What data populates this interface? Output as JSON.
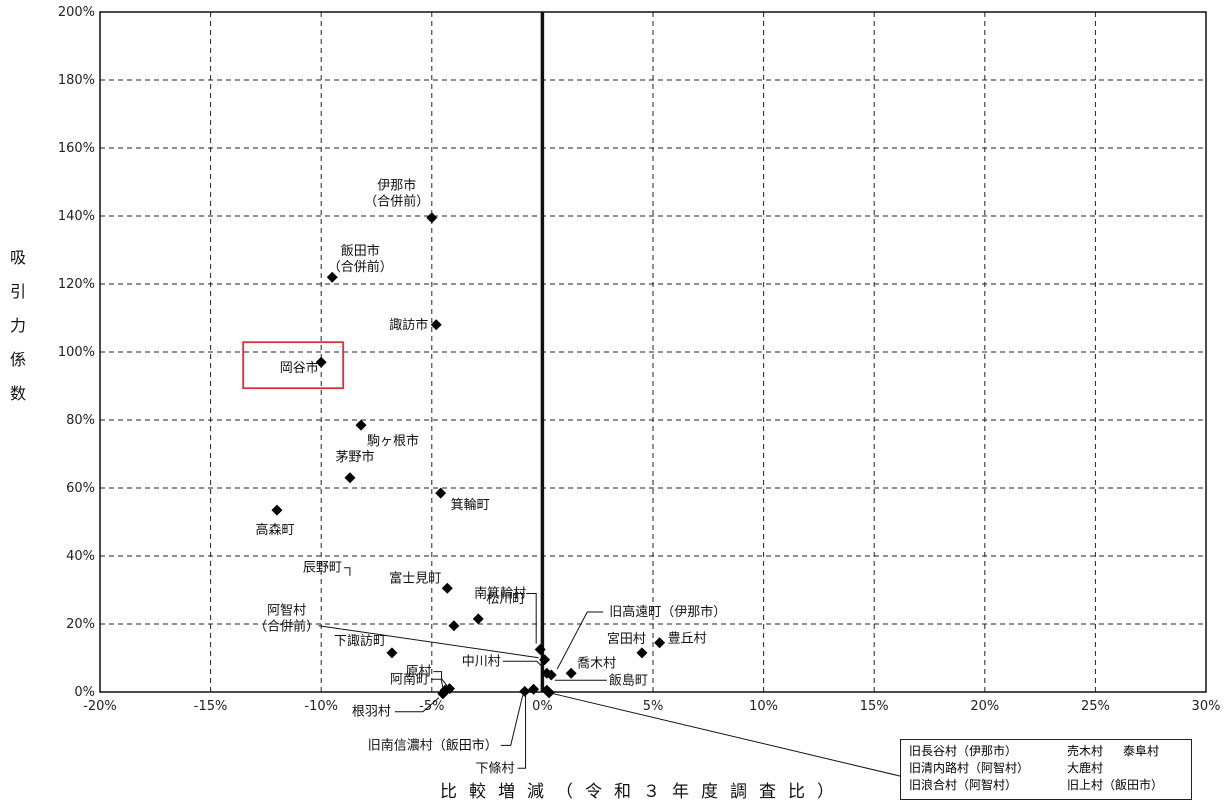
{
  "chart_data": {
    "type": "scatter",
    "title": "",
    "xlabel": "比較増減（令和３年度調査比）",
    "ylabel": "吸引力係数",
    "xlim": [
      -20,
      30
    ],
    "ylim": [
      0,
      200
    ],
    "x_ticks": [
      "-20%",
      "-15%",
      "-10%",
      "-5%",
      "0%",
      "5%",
      "10%",
      "15%",
      "20%",
      "25%",
      "30%"
    ],
    "y_ticks": [
      "0%",
      "20%",
      "40%",
      "60%",
      "80%",
      "100%",
      "120%",
      "140%",
      "160%",
      "180%",
      "200%"
    ],
    "grid": true,
    "highlight": {
      "name": "岡谷市",
      "color": "#d9303e"
    },
    "points": [
      {
        "name": "伊那市",
        "sub": "（合併前）",
        "x": -5.0,
        "y": 139.5
      },
      {
        "name": "飯田市",
        "sub": "（合併前）",
        "x": -9.5,
        "y": 122.0
      },
      {
        "name": "諏訪市",
        "sub": "",
        "x": -4.8,
        "y": 108.0
      },
      {
        "name": "岡谷市",
        "sub": "",
        "x": -10.0,
        "y": 97.0
      },
      {
        "name": "駒ヶ根市",
        "sub": "",
        "x": -8.2,
        "y": 78.5
      },
      {
        "name": "茅野市",
        "sub": "",
        "x": -8.7,
        "y": 63.0
      },
      {
        "name": "箕輪町",
        "sub": "",
        "x": -4.6,
        "y": 58.5
      },
      {
        "name": "高森町",
        "sub": "",
        "x": -12.0,
        "y": 53.5
      },
      {
        "name": "富士見町",
        "sub": "",
        "x": -4.3,
        "y": 30.5
      },
      {
        "name": "南箕輪村",
        "sub": "",
        "x": -0.1,
        "y": 12.5
      },
      {
        "name": "阿智村",
        "sub": "（合併前）",
        "x": 0.1,
        "y": 9.5
      },
      {
        "name": "辰野町",
        "sub": "",
        "x": -4.0,
        "y": 19.5
      },
      {
        "name": "松川町",
        "sub": "",
        "x": -2.9,
        "y": 21.5
      },
      {
        "name": "旧高遠町（伊那市）",
        "sub": "",
        "x": 0.4,
        "y": 5.0
      },
      {
        "name": "宮田村",
        "sub": "",
        "x": 4.5,
        "y": 11.5
      },
      {
        "name": "豊丘村",
        "sub": "",
        "x": 5.3,
        "y": 14.5
      },
      {
        "name": "下諏訪町",
        "sub": "",
        "x": -6.8,
        "y": 11.5
      },
      {
        "name": "中川村",
        "sub": "",
        "x": 0.2,
        "y": 5.5
      },
      {
        "name": "喬木村",
        "sub": "",
        "x": 1.3,
        "y": 5.5
      },
      {
        "name": "原村",
        "sub": "",
        "x": -4.2,
        "y": 1.0
      },
      {
        "name": "阿南町",
        "sub": "",
        "x": -4.4,
        "y": 0.5
      },
      {
        "name": "飯島町",
        "sub": "",
        "x": 0.2,
        "y": 0.5
      },
      {
        "name": "根羽村",
        "sub": "",
        "x": -4.5,
        "y": -0.5
      },
      {
        "name": "旧南信濃村（飯田市）",
        "sub": "",
        "x": -0.8,
        "y": 0.2
      },
      {
        "name": "下條村",
        "sub": "",
        "x": -0.4,
        "y": 0.8
      },
      {
        "name": "旧長谷村（伊那市）",
        "sub": "",
        "x": 0.3,
        "y": -0.2
      },
      {
        "name": "旧清内路村（阿智村）",
        "sub": "",
        "x": 0.3,
        "y": -0.2
      },
      {
        "name": "旧浪合村（阿智村）",
        "sub": "",
        "x": 0.3,
        "y": -0.2
      },
      {
        "name": "売木村",
        "sub": "",
        "x": 0.3,
        "y": -0.2
      },
      {
        "name": "大鹿村",
        "sub": "",
        "x": 0.3,
        "y": -0.2
      },
      {
        "name": "旧上村（飯田市）",
        "sub": "",
        "x": 0.3,
        "y": -0.2
      },
      {
        "name": "泰阜村",
        "sub": "",
        "x": 0.3,
        "y": -0.2
      }
    ],
    "legend_group": [
      [
        "旧長谷村（伊那市）",
        "売木村",
        "泰阜村"
      ],
      [
        "旧清内路村（阿智村）",
        "大鹿村",
        ""
      ],
      [
        "旧浪合村（阿智村）",
        "旧上村（飯田市）",
        ""
      ]
    ]
  }
}
